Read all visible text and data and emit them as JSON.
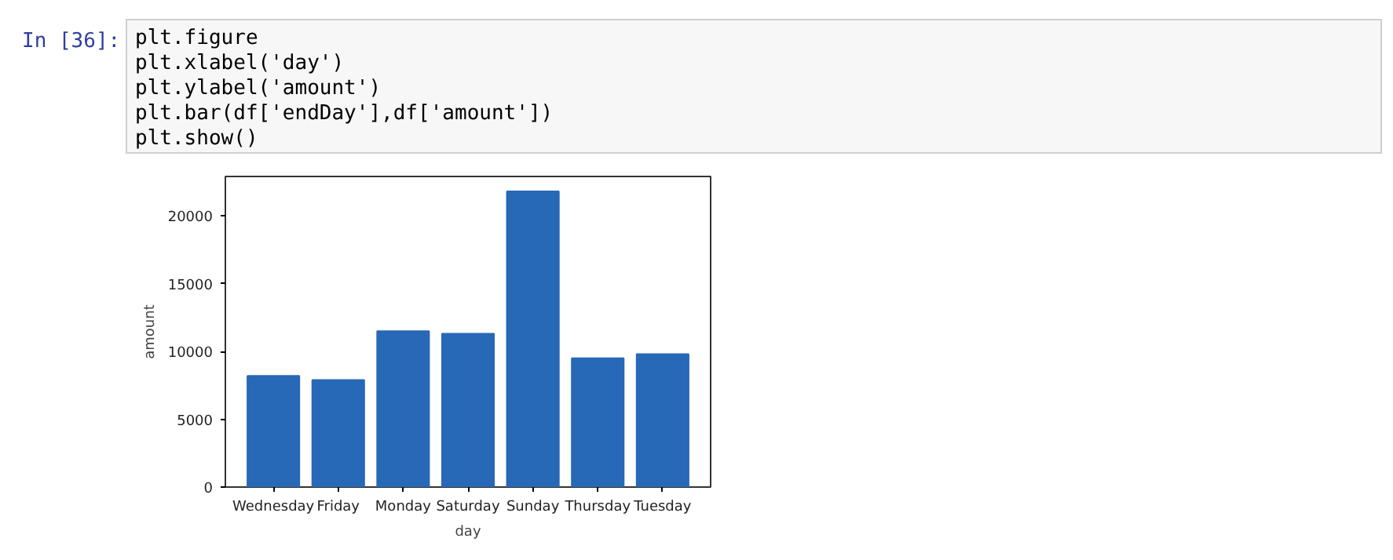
{
  "chart_data": {
    "type": "bar",
    "xlabel": "day",
    "ylabel": "amount",
    "annotations": [
      "In [36]:",
      "plt.figure\nplt.xlabel('day')\nplt.ylabel('amount')\nplt.bar(df['endDay'],df['amount'])\nplt.show()"
    ],
    "categories": [
      "Wednesday",
      "Friday",
      "Monday",
      "Saturday",
      "Sunday",
      "Thursday",
      "Tuesday"
    ],
    "values": [
      8200,
      7900,
      11500,
      11300,
      21800,
      9500,
      9800
    ],
    "color": "#2768b7",
    "ylim": [
      0,
      22900
    ],
    "yticks": [
      0,
      5000,
      10000,
      15000,
      20000
    ],
    "grid": false
  }
}
